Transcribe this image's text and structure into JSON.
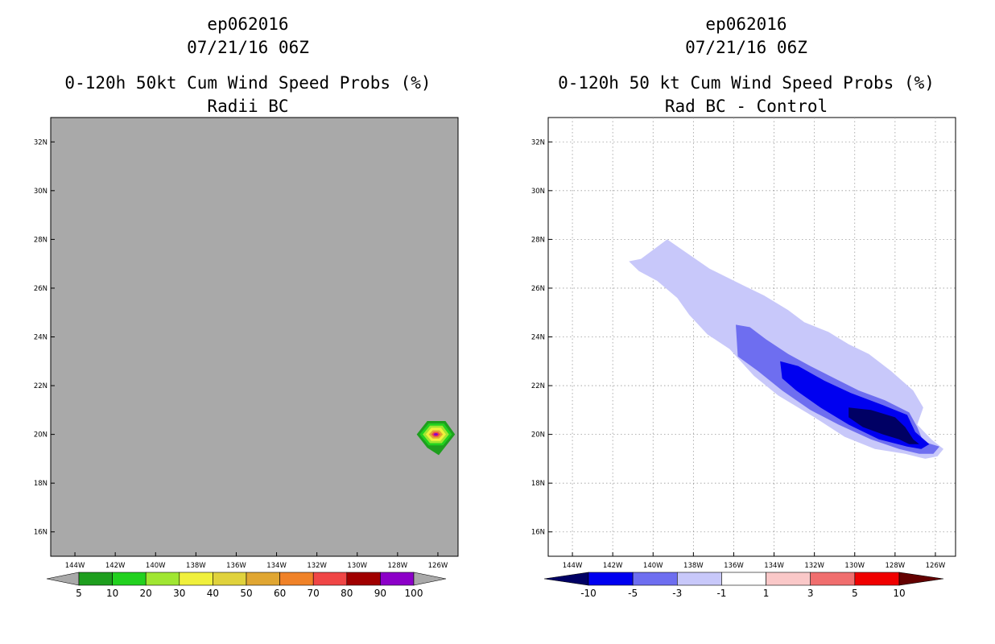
{
  "chart_data": [
    {
      "type": "heatmap",
      "title_lines": [
        "ep062016",
        "07/21/16 06Z",
        "0-120h 50kt Cum Wind Speed Probs (%)",
        "Radii BC"
      ],
      "x_ticks": [
        "144W",
        "142W",
        "140W",
        "138W",
        "136W",
        "134W",
        "132W",
        "130W",
        "128W",
        "126W"
      ],
      "y_ticks": [
        "32N",
        "30N",
        "28N",
        "26N",
        "24N",
        "22N",
        "20N",
        "18N",
        "16N"
      ],
      "xlim": [
        -145.2,
        -125.0
      ],
      "ylim": [
        15.0,
        33.0
      ],
      "grid": false,
      "background_color": "#a9a9a9",
      "colorbar": {
        "labels": [
          "5",
          "10",
          "20",
          "30",
          "40",
          "50",
          "60",
          "70",
          "80",
          "90",
          "100"
        ],
        "colors": [
          "#1e9e1e",
          "#22d11f",
          "#a0e632",
          "#f0f03c",
          "#e0d23c",
          "#e0a632",
          "#f08228",
          "#f04646",
          "#a00000",
          "#8c00c8"
        ],
        "end_left": "#a9a9a9",
        "end_right": "#a9a9a9"
      },
      "blob_center": {
        "lon": -126.1,
        "lat": 20.0
      },
      "levels": [
        {
          "value": 5,
          "color": "#1e9e1e",
          "rx": 0.95,
          "ry": 0.55
        },
        {
          "value": 10,
          "color": "#22d11f",
          "rx": 0.8,
          "ry": 0.45
        },
        {
          "value": 20,
          "color": "#a0e632",
          "rx": 0.65,
          "ry": 0.36
        },
        {
          "value": 30,
          "color": "#f0f03c",
          "rx": 0.5,
          "ry": 0.27
        },
        {
          "value": 50,
          "color": "#e0a632",
          "rx": 0.35,
          "ry": 0.17
        },
        {
          "value": 70,
          "color": "#f04646",
          "rx": 0.22,
          "ry": 0.1
        },
        {
          "value": 90,
          "color": "#8c00c8",
          "rx": 0.12,
          "ry": 0.05
        }
      ]
    },
    {
      "type": "heatmap",
      "title_lines": [
        "ep062016",
        "07/21/16 06Z",
        "0-120h 50 kt Cum Wind Speed Probs (%)",
        "Rad BC - Control"
      ],
      "x_ticks": [
        "144W",
        "142W",
        "140W",
        "138W",
        "136W",
        "134W",
        "132W",
        "130W",
        "128W",
        "126W"
      ],
      "y_ticks": [
        "32N",
        "30N",
        "28N",
        "26N",
        "24N",
        "22N",
        "20N",
        "18N",
        "16N"
      ],
      "xlim": [
        -145.2,
        -125.0
      ],
      "ylim": [
        15.0,
        33.0
      ],
      "grid": true,
      "background_color": "#ffffff",
      "colorbar": {
        "labels": [
          "-10",
          "-5",
          "-3",
          "-1",
          "1",
          "3",
          "5",
          "10"
        ],
        "colors": [
          "#0000f0",
          "#6e6ef0",
          "#c8c8fa",
          "#ffffff",
          "#fac8c8",
          "#f06e6e",
          "#f00000"
        ],
        "end_left": "#000064",
        "end_right": "#640000"
      },
      "regions": [
        {
          "level": "-1",
          "color": "#c8c8fa",
          "polygon": [
            [
              -141.2,
              27.1
            ],
            [
              -140.6,
              27.2
            ],
            [
              -139.3,
              28.0
            ],
            [
              -138.6,
              27.6
            ],
            [
              -137.2,
              26.8
            ],
            [
              -135.5,
              26.1
            ],
            [
              -134.5,
              25.7
            ],
            [
              -133.3,
              25.1
            ],
            [
              -132.5,
              24.6
            ],
            [
              -131.3,
              24.2
            ],
            [
              -130.3,
              23.7
            ],
            [
              -129.3,
              23.3
            ],
            [
              -128.2,
              22.6
            ],
            [
              -127.1,
              21.8
            ],
            [
              -126.6,
              21.1
            ],
            [
              -126.9,
              20.4
            ],
            [
              -126.2,
              19.8
            ],
            [
              -125.6,
              19.4
            ],
            [
              -125.9,
              19.1
            ],
            [
              -126.5,
              19.0
            ],
            [
              -127.5,
              19.2
            ],
            [
              -129.0,
              19.4
            ],
            [
              -130.5,
              19.9
            ],
            [
              -132.0,
              20.7
            ],
            [
              -133.8,
              21.6
            ],
            [
              -135.0,
              22.4
            ],
            [
              -136.2,
              23.5
            ],
            [
              -137.3,
              24.1
            ],
            [
              -138.2,
              24.9
            ],
            [
              -138.8,
              25.6
            ],
            [
              -139.8,
              26.3
            ],
            [
              -140.7,
              26.7
            ]
          ]
        },
        {
          "level": "-3",
          "color": "#6e6ef0",
          "polygon": [
            [
              -135.9,
              24.5
            ],
            [
              -135.2,
              24.4
            ],
            [
              -134.4,
              23.9
            ],
            [
              -133.3,
              23.3
            ],
            [
              -132.2,
              22.8
            ],
            [
              -131.0,
              22.3
            ],
            [
              -129.8,
              21.8
            ],
            [
              -128.5,
              21.4
            ],
            [
              -127.3,
              20.9
            ],
            [
              -126.9,
              20.3
            ],
            [
              -126.6,
              19.7
            ],
            [
              -125.8,
              19.5
            ],
            [
              -126.1,
              19.2
            ],
            [
              -126.8,
              19.2
            ],
            [
              -127.8,
              19.4
            ],
            [
              -129.2,
              19.8
            ],
            [
              -130.8,
              20.4
            ],
            [
              -132.2,
              21.0
            ],
            [
              -133.6,
              21.8
            ],
            [
              -134.8,
              22.6
            ],
            [
              -135.8,
              23.2
            ]
          ]
        },
        {
          "level": "-5",
          "color": "#0000f0",
          "polygon": [
            [
              -133.7,
              23.0
            ],
            [
              -132.8,
              22.8
            ],
            [
              -131.5,
              22.2
            ],
            [
              -130.2,
              21.7
            ],
            [
              -128.6,
              21.2
            ],
            [
              -127.4,
              20.8
            ],
            [
              -127.0,
              20.1
            ],
            [
              -126.3,
              19.6
            ],
            [
              -126.7,
              19.4
            ],
            [
              -127.4,
              19.5
            ],
            [
              -128.8,
              19.8
            ],
            [
              -130.3,
              20.4
            ],
            [
              -131.7,
              21.1
            ],
            [
              -132.9,
              21.8
            ],
            [
              -133.6,
              22.3
            ]
          ]
        },
        {
          "level": "-10",
          "color": "#000064",
          "polygon": [
            [
              -130.3,
              21.1
            ],
            [
              -129.2,
              21.0
            ],
            [
              -128.0,
              20.7
            ],
            [
              -127.5,
              20.3
            ],
            [
              -127.1,
              19.8
            ],
            [
              -126.8,
              19.6
            ],
            [
              -127.3,
              19.6
            ],
            [
              -127.8,
              19.8
            ],
            [
              -128.6,
              20.0
            ],
            [
              -129.6,
              20.3
            ],
            [
              -130.3,
              20.7
            ]
          ]
        }
      ]
    }
  ]
}
